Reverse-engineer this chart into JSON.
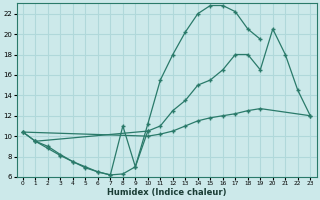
{
  "xlabel": "Humidex (Indice chaleur)",
  "bg_color": "#cce9ea",
  "grid_color": "#b0d8da",
  "line_color": "#2a7a6a",
  "curve_upper_x": [
    0,
    1,
    2,
    3,
    4,
    5,
    6,
    7,
    8,
    9,
    10,
    11,
    12,
    13,
    14,
    15,
    16,
    17,
    18,
    19
  ],
  "curve_upper_y": [
    10.4,
    9.5,
    9.0,
    8.2,
    7.5,
    7.0,
    6.5,
    6.2,
    6.3,
    7.0,
    11.2,
    15.5,
    18.0,
    20.2,
    22.0,
    22.8,
    22.8,
    22.2,
    20.5,
    19.5
  ],
  "curve_mid1_x": [
    0,
    1,
    10,
    11,
    12,
    13,
    14,
    15,
    16,
    17,
    18,
    19,
    20,
    21,
    22,
    23
  ],
  "curve_mid1_y": [
    10.4,
    9.5,
    10.5,
    11.0,
    12.5,
    13.5,
    15.0,
    15.5,
    16.5,
    18.0,
    18.0,
    16.5,
    20.5,
    18.0,
    14.5,
    12.0
  ],
  "curve_mid2_x": [
    0,
    10,
    11,
    12,
    13,
    14,
    15,
    16,
    17,
    18,
    19,
    23
  ],
  "curve_mid2_y": [
    10.4,
    10.0,
    10.2,
    10.5,
    11.0,
    11.5,
    11.8,
    12.0,
    12.2,
    12.5,
    12.7,
    12.0
  ],
  "curve_dip_x": [
    1,
    2,
    3,
    4,
    5,
    6,
    7,
    8,
    9,
    10
  ],
  "curve_dip_y": [
    9.5,
    8.8,
    8.1,
    7.5,
    6.9,
    6.5,
    6.2,
    11.0,
    7.0,
    10.5
  ],
  "xlim": [
    -0.5,
    23.5
  ],
  "ylim": [
    6,
    23
  ],
  "yticks": [
    6,
    8,
    10,
    12,
    14,
    16,
    18,
    20,
    22
  ],
  "xticks": [
    0,
    1,
    2,
    3,
    4,
    5,
    6,
    7,
    8,
    9,
    10,
    11,
    12,
    13,
    14,
    15,
    16,
    17,
    18,
    19,
    20,
    21,
    22,
    23
  ]
}
